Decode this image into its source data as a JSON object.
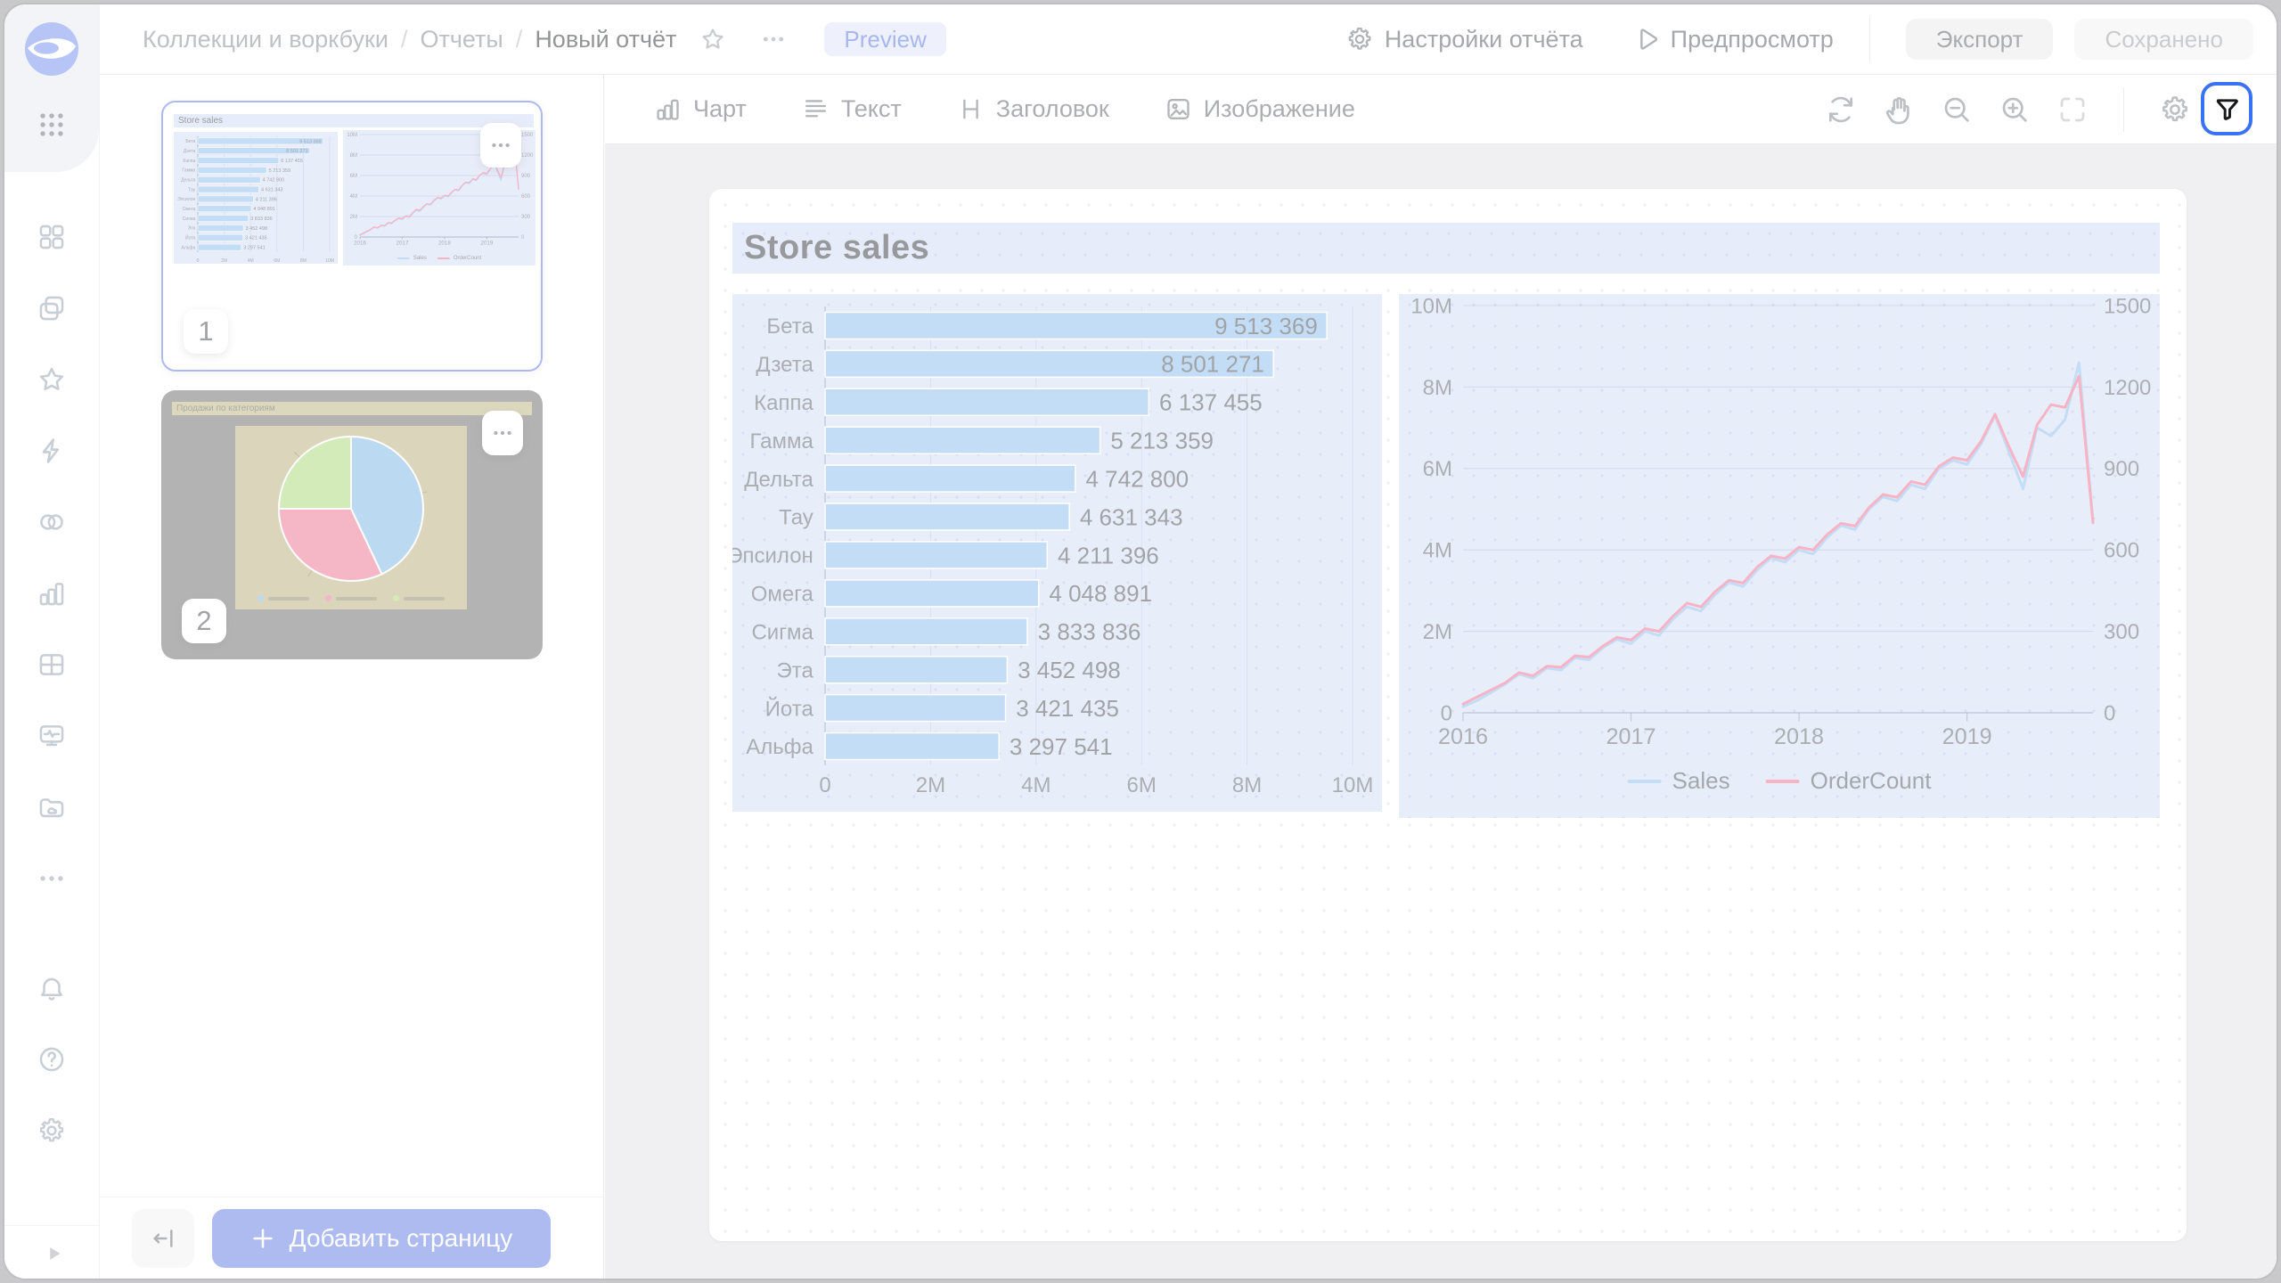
{
  "header": {
    "breadcrumb": [
      "Коллекции и воркбуки",
      "Отчеты",
      "Новый отчёт"
    ],
    "separator": "/",
    "preview_badge": "Preview",
    "report_settings_label": "Настройки отчёта",
    "preview_button_label": "Предпросмотр",
    "export_button_label": "Экспорт",
    "saved_button_label": "Сохранено"
  },
  "sidebar": {
    "nav_icons": [
      "grid-squares-icon",
      "copy-icon",
      "star-icon",
      "lightning-icon",
      "circles-icon",
      "bar-chart-icon",
      "table-icon",
      "monitor-pulse-icon",
      "folder-cloud-icon",
      "ellipsis-icon"
    ],
    "footer_icons": [
      "bell-icon",
      "help-icon",
      "gear-icon"
    ],
    "expand_icon": "play-icon"
  },
  "pages_panel": {
    "pages": [
      {
        "number": "1",
        "title": "Store sales",
        "selected": true
      },
      {
        "number": "2",
        "title": "Продажи по категориям",
        "selected": false
      }
    ],
    "add_page_button": "Добавить страницу"
  },
  "toolbar": {
    "insert_buttons": [
      {
        "label": "Чарт",
        "icon": "chart-icon"
      },
      {
        "label": "Текст",
        "icon": "text-icon"
      },
      {
        "label": "Заголовок",
        "icon": "heading-icon"
      },
      {
        "label": "Изображение",
        "icon": "image-icon"
      }
    ],
    "tool_icons": [
      {
        "icon": "refresh-icon",
        "disabled": false
      },
      {
        "icon": "hand-icon",
        "disabled": false
      },
      {
        "icon": "zoom-out-icon",
        "disabled": false
      },
      {
        "icon": "zoom-in-icon",
        "disabled": false
      },
      {
        "icon": "fullscreen-icon",
        "disabled": true
      }
    ],
    "settings_icon": "gear-icon",
    "filter_icon": "filter-icon"
  },
  "report": {
    "title": "Store sales"
  },
  "chart_data": [
    {
      "id": "category-bars",
      "type": "bar",
      "orientation": "horizontal",
      "title": "",
      "categories": [
        "Бета",
        "Дзета",
        "Каппа",
        "Гамма",
        "Дельта",
        "Тау",
        "Эпсилон",
        "Омега",
        "Сигма",
        "Эта",
        "Йота",
        "Альфа"
      ],
      "values": [
        9513369,
        8501271,
        6137455,
        5213359,
        4742800,
        4631343,
        4211396,
        4048891,
        3833836,
        3452498,
        3421435,
        3297541
      ],
      "xlim": [
        0,
        10000000
      ],
      "xticks": [
        "0",
        "2M",
        "4M",
        "6M",
        "8M",
        "10M"
      ],
      "bar_color": "#7cb5ec",
      "grid": true
    },
    {
      "id": "sales-orders-trend",
      "type": "line",
      "x_year_ticks": [
        "2016",
        "2017",
        "2018",
        "2019"
      ],
      "year_tick_indices": [
        0,
        12,
        24,
        36
      ],
      "series": [
        {
          "name": "Sales",
          "color": "#7cb5ec",
          "axis": "left",
          "values": [
            150000,
            300000,
            500000,
            700000,
            950000,
            850000,
            1100000,
            1050000,
            1350000,
            1300000,
            1600000,
            1800000,
            1700000,
            2000000,
            1900000,
            2300000,
            2600000,
            2500000,
            2900000,
            3200000,
            3100000,
            3500000,
            3800000,
            3700000,
            4000000,
            3900000,
            4300000,
            4600000,
            4500000,
            5000000,
            5300000,
            5200000,
            5600000,
            5500000,
            6000000,
            6200000,
            6100000,
            6600000,
            7300000,
            6400000,
            5500000,
            7000000,
            6800000,
            7200000,
            8600000,
            4700000
          ]
        },
        {
          "name": "OrderCount",
          "color": "#ef5b7e",
          "axis": "right",
          "values": [
            32,
            58,
            84,
            110,
            148,
            136,
            172,
            168,
            210,
            205,
            246,
            278,
            268,
            310,
            300,
            356,
            404,
            390,
            446,
            488,
            478,
            536,
            578,
            568,
            610,
            600,
            656,
            698,
            688,
            756,
            804,
            794,
            852,
            840,
            908,
            940,
            930,
            1000,
            1100,
            980,
            870,
            1060,
            1135,
            1125,
            1240,
            700
          ]
        }
      ],
      "left_axis": {
        "ticks": [
          "0",
          "2M",
          "4M",
          "6M",
          "8M",
          "10M"
        ],
        "max": 10000000
      },
      "right_axis": {
        "ticks": [
          "0",
          "300",
          "600",
          "900",
          "1200",
          "1500"
        ],
        "max": 1500
      },
      "legend_position": "bottom",
      "grid": true
    },
    {
      "id": "sales-by-category-pie",
      "type": "pie",
      "title": "Продажи по категориям",
      "slices": [
        {
          "color": "#6dace2",
          "value": 43
        },
        {
          "color": "#ea6084",
          "value": 32
        },
        {
          "color": "#9fd368",
          "value": 25
        }
      ]
    }
  ]
}
